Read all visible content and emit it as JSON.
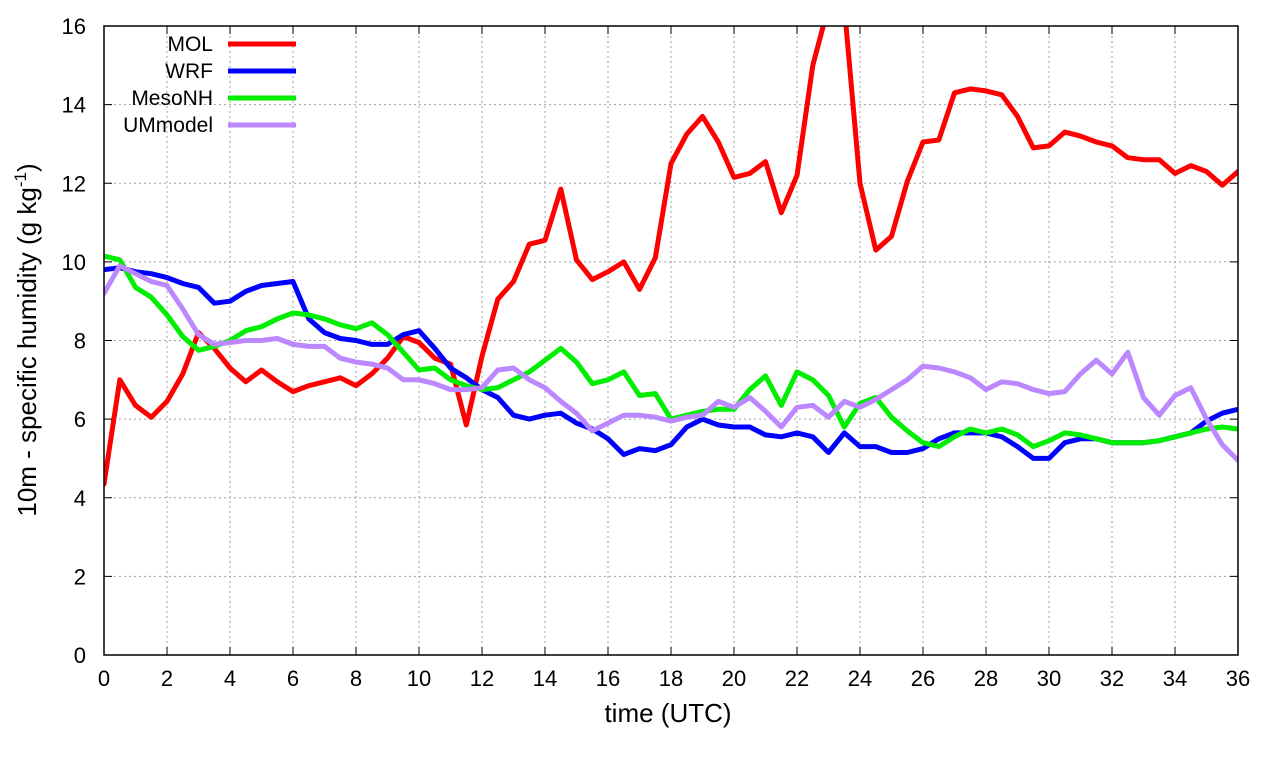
{
  "chart_data": {
    "type": "line",
    "title": "",
    "xlabel": "time (UTC)",
    "ylabel": {
      "prefix": "10m - specific humidity (g kg",
      "superscript": "-1",
      "suffix": ")"
    },
    "xlim": [
      0,
      36
    ],
    "ylim": [
      0,
      16
    ],
    "xticks": [
      0,
      2,
      4,
      6,
      8,
      10,
      12,
      14,
      16,
      18,
      20,
      22,
      24,
      26,
      28,
      30,
      32,
      34,
      36
    ],
    "yticks": [
      0,
      2,
      4,
      6,
      8,
      10,
      12,
      14,
      16
    ],
    "grid": true,
    "legend_position": "top-left",
    "series": [
      {
        "name": "MOL",
        "color": "#ff0000",
        "x": [
          0,
          0.5,
          1,
          1.5,
          2,
          2.5,
          3,
          3.5,
          4,
          4.5,
          5,
          5.5,
          6,
          6.5,
          7,
          7.5,
          8,
          8.5,
          9,
          9.5,
          10,
          10.5,
          11,
          11.5,
          12,
          12.5,
          13,
          13.5,
          14,
          14.5,
          15,
          15.5,
          16,
          16.5,
          17,
          17.5,
          18,
          18.5,
          19,
          19.5,
          20,
          20.5,
          21,
          21.5,
          22,
          22.5,
          23,
          23.5,
          24,
          24.5,
          25,
          25.5,
          26,
          26.5,
          27,
          27.5,
          28,
          28.5,
          29,
          29.5,
          30,
          30.5,
          31,
          31.5,
          32,
          32.5,
          33,
          33.5,
          34,
          34.5,
          35,
          35.5,
          36
        ],
        "y": [
          4.35,
          7.0,
          6.35,
          6.05,
          6.45,
          7.15,
          8.2,
          7.8,
          7.3,
          6.95,
          7.25,
          6.95,
          6.7,
          6.85,
          6.95,
          7.05,
          6.85,
          7.15,
          7.55,
          8.1,
          7.95,
          7.55,
          7.4,
          5.85,
          7.6,
          9.05,
          9.5,
          10.45,
          10.55,
          11.85,
          10.05,
          9.55,
          9.75,
          10.0,
          9.3,
          10.1,
          12.5,
          13.25,
          13.7,
          13.05,
          12.15,
          12.25,
          12.55,
          11.25,
          12.2,
          15.0,
          16.5,
          16.5,
          12.0,
          10.3,
          10.65,
          12.05,
          13.05,
          13.1,
          14.3,
          14.4,
          14.35,
          14.25,
          13.7,
          12.9,
          12.95,
          13.3,
          13.2,
          13.05,
          12.95,
          12.65,
          12.6,
          12.6,
          12.25,
          12.45,
          12.3,
          11.95,
          12.3
        ]
      },
      {
        "name": "WRF",
        "color": "#0000ff",
        "x": [
          0,
          0.5,
          1,
          1.5,
          2,
          2.5,
          3,
          3.5,
          4,
          4.5,
          5,
          5.5,
          6,
          6.5,
          7,
          7.5,
          8,
          8.5,
          9,
          9.5,
          10,
          10.5,
          11,
          11.5,
          12,
          12.5,
          13,
          13.5,
          14,
          14.5,
          15,
          15.5,
          16,
          16.5,
          17,
          17.5,
          18,
          18.5,
          19,
          19.5,
          20,
          20.5,
          21,
          21.5,
          22,
          22.5,
          23,
          23.5,
          24,
          24.5,
          25,
          25.5,
          26,
          26.5,
          27,
          27.5,
          28,
          28.5,
          29,
          29.5,
          30,
          30.5,
          31,
          31.5,
          32,
          32.5,
          33,
          33.5,
          34,
          34.5,
          35,
          35.5,
          36
        ],
        "y": [
          9.8,
          9.85,
          9.75,
          9.7,
          9.6,
          9.45,
          9.35,
          8.95,
          9.0,
          9.25,
          9.4,
          9.45,
          9.5,
          8.55,
          8.2,
          8.05,
          8.0,
          7.9,
          7.9,
          8.15,
          8.25,
          7.8,
          7.3,
          7.05,
          6.75,
          6.55,
          6.1,
          6.0,
          6.1,
          6.15,
          5.9,
          5.75,
          5.5,
          5.1,
          5.25,
          5.2,
          5.35,
          5.8,
          6.0,
          5.85,
          5.8,
          5.8,
          5.6,
          5.55,
          5.65,
          5.55,
          5.15,
          5.65,
          5.3,
          5.3,
          5.15,
          5.15,
          5.25,
          5.5,
          5.65,
          5.65,
          5.65,
          5.55,
          5.3,
          5.0,
          5.0,
          5.4,
          5.5,
          5.5,
          5.4,
          5.4,
          5.4,
          5.45,
          5.55,
          5.65,
          5.95,
          6.15,
          6.25
        ]
      },
      {
        "name": "MesoNH",
        "color": "#00ee00",
        "x": [
          0,
          0.5,
          1,
          1.5,
          2,
          2.5,
          3,
          3.5,
          4,
          4.5,
          5,
          5.5,
          6,
          6.5,
          7,
          7.5,
          8,
          8.5,
          9,
          9.5,
          10,
          10.5,
          11,
          11.5,
          12,
          12.5,
          13,
          13.5,
          14,
          14.5,
          15,
          15.5,
          16,
          16.5,
          17,
          17.5,
          18,
          18.5,
          19,
          19.5,
          20,
          20.5,
          21,
          21.5,
          22,
          22.5,
          23,
          23.5,
          24,
          24.5,
          25,
          25.5,
          26,
          26.5,
          27,
          27.5,
          28,
          28.5,
          29,
          29.5,
          30,
          30.5,
          31,
          31.5,
          32,
          32.5,
          33,
          33.5,
          34,
          34.5,
          35,
          35.5,
          36
        ],
        "y": [
          10.15,
          10.05,
          9.35,
          9.1,
          8.65,
          8.1,
          7.75,
          7.85,
          8.0,
          8.25,
          8.35,
          8.55,
          8.7,
          8.65,
          8.55,
          8.4,
          8.3,
          8.45,
          8.15,
          7.7,
          7.25,
          7.3,
          7.0,
          6.85,
          6.75,
          6.8,
          7.0,
          7.2,
          7.5,
          7.8,
          7.45,
          6.9,
          7.0,
          7.2,
          6.6,
          6.65,
          6.0,
          6.1,
          6.2,
          6.25,
          6.25,
          6.75,
          7.1,
          6.35,
          7.2,
          7.0,
          6.6,
          5.8,
          6.4,
          6.55,
          6.05,
          5.7,
          5.4,
          5.3,
          5.55,
          5.75,
          5.65,
          5.75,
          5.6,
          5.3,
          5.45,
          5.65,
          5.6,
          5.5,
          5.4,
          5.4,
          5.4,
          5.45,
          5.55,
          5.65,
          5.75,
          5.8,
          5.75
        ]
      },
      {
        "name": "UMmodel",
        "color": "#bb88ff",
        "x": [
          0,
          0.5,
          1,
          1.5,
          2,
          2.5,
          3,
          3.5,
          4,
          4.5,
          5,
          5.5,
          6,
          6.5,
          7,
          7.5,
          8,
          8.5,
          9,
          9.5,
          10,
          10.5,
          11,
          11.5,
          12,
          12.5,
          13,
          13.5,
          14,
          14.5,
          15,
          15.5,
          16,
          16.5,
          17,
          17.5,
          18,
          18.5,
          19,
          19.5,
          20,
          20.5,
          21,
          21.5,
          22,
          22.5,
          23,
          23.5,
          24,
          24.5,
          25,
          25.5,
          26,
          26.5,
          27,
          27.5,
          28,
          28.5,
          29,
          29.5,
          30,
          30.5,
          31,
          31.5,
          32,
          32.5,
          33,
          33.5,
          34,
          34.5,
          35,
          35.5,
          36
        ],
        "y": [
          9.2,
          9.9,
          9.7,
          9.5,
          9.4,
          8.8,
          8.15,
          7.9,
          7.95,
          8.0,
          8.0,
          8.05,
          7.9,
          7.85,
          7.85,
          7.55,
          7.45,
          7.4,
          7.3,
          7.0,
          7.0,
          6.9,
          6.75,
          6.75,
          6.8,
          7.25,
          7.3,
          7.0,
          6.8,
          6.45,
          6.15,
          5.7,
          5.9,
          6.1,
          6.1,
          6.05,
          5.95,
          6.05,
          6.1,
          6.45,
          6.3,
          6.55,
          6.2,
          5.8,
          6.3,
          6.35,
          6.05,
          6.45,
          6.3,
          6.5,
          6.75,
          7.0,
          7.35,
          7.3,
          7.2,
          7.05,
          6.75,
          6.95,
          6.9,
          6.75,
          6.65,
          6.7,
          7.15,
          7.5,
          7.15,
          7.7,
          6.55,
          6.1,
          6.6,
          6.8,
          6.0,
          5.35,
          4.95
        ]
      }
    ]
  }
}
